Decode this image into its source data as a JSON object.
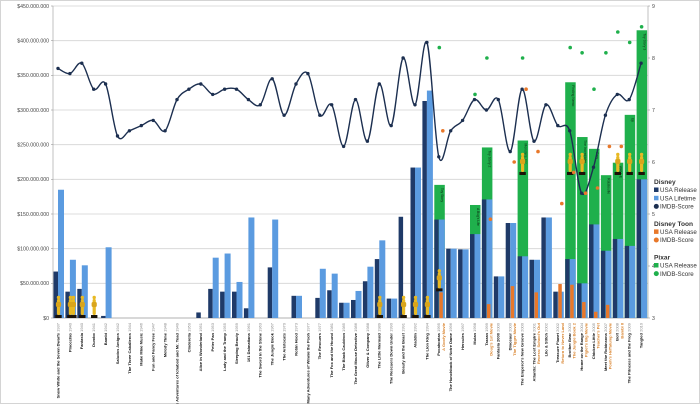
{
  "chart_data": {
    "type": "bar",
    "left_axis": {
      "ylim": [
        0,
        450000000
      ],
      "tick_labels": [
        "$0",
        "$50.000.000",
        "$100.000.000",
        "$150.000.000",
        "$200.000.000",
        "$250.000.000",
        "$300.000.000",
        "$350.000.000",
        "$400.000.000",
        "$450.000.000"
      ],
      "unit": "USD millions in series values"
    },
    "right_axis": {
      "ylim": [
        3,
        9
      ],
      "tick_labels": [
        "3",
        "4",
        "5",
        "6",
        "7",
        "8",
        "9"
      ]
    },
    "grid": true,
    "legend_placement": "right",
    "colors": {
      "disney_release": "#1f3a68",
      "disney_lifetime": "#5b9be0",
      "disney_imdb": "#1c2f50",
      "toon": "#e8782a",
      "pixar": "#1fb04c",
      "oscar": "#e8b923"
    },
    "categories": [
      {
        "title": "Snow White and the Seven Dwarfs",
        "year": "1937",
        "toon": ""
      },
      {
        "title": "Pinocchio",
        "year": "1940",
        "toon": ""
      },
      {
        "title": "Fantasia",
        "year": "1940",
        "toon": ""
      },
      {
        "title": "Dumbo",
        "year": "1941",
        "toon": ""
      },
      {
        "title": "Bambi",
        "year": "1942",
        "toon": ""
      },
      {
        "title": "Saludos Amigos",
        "year": "1942",
        "toon": ""
      },
      {
        "title": "The Three Caballeros",
        "year": "1944",
        "toon": ""
      },
      {
        "title": "Make Mine Music",
        "year": "1946",
        "toon": ""
      },
      {
        "title": "Fun and Fancy Free",
        "year": "1947",
        "toon": ""
      },
      {
        "title": "Melody Time",
        "year": "1948",
        "toon": ""
      },
      {
        "title": "The Adventures of Ichabod and Mr. Toad",
        "year": "1949",
        "toon": ""
      },
      {
        "title": "Cinderella",
        "year": "1950",
        "toon": ""
      },
      {
        "title": "Alice in Wonderland",
        "year": "1951",
        "toon": ""
      },
      {
        "title": "Peter Pan",
        "year": "1953",
        "toon": ""
      },
      {
        "title": "Lady and the Tramp",
        "year": "1955",
        "toon": ""
      },
      {
        "title": "Sleeping Beauty",
        "year": "1959",
        "toon": ""
      },
      {
        "title": "101 Dalmatians",
        "year": "1961",
        "toon": ""
      },
      {
        "title": "The Sword in the Stone",
        "year": "1963",
        "toon": ""
      },
      {
        "title": "The Jungle Book",
        "year": "1967",
        "toon": ""
      },
      {
        "title": "The Aristocats",
        "year": "1970",
        "toon": ""
      },
      {
        "title": "Robin Hood",
        "year": "1973",
        "toon": ""
      },
      {
        "title": "The Many Adventures of Winnie the Pooh",
        "year": "1977",
        "toon": ""
      },
      {
        "title": "The Rescuers",
        "year": "1977",
        "toon": ""
      },
      {
        "title": "The Fox and the Hound",
        "year": "1981",
        "toon": ""
      },
      {
        "title": "The Black Cauldron",
        "year": "1985",
        "toon": ""
      },
      {
        "title": "The Great Mouse Detective",
        "year": "1986",
        "toon": ""
      },
      {
        "title": "Oliver & Company",
        "year": "1988",
        "toon": ""
      },
      {
        "title": "The Little Mermaid",
        "year": "1989",
        "toon": ""
      },
      {
        "title": "The Rescuers Down Under",
        "year": "1990",
        "toon": ""
      },
      {
        "title": "Beauty and the Beast",
        "year": "1991",
        "toon": ""
      },
      {
        "title": "Aladdin",
        "year": "1992",
        "toon": ""
      },
      {
        "title": "The Lion King",
        "year": "1994",
        "toon": ""
      },
      {
        "title": "Pocahontas",
        "year": "1995",
        "toon": "A Goofy Movie"
      },
      {
        "title": "The Hunchback of Notre Dame",
        "year": "1996",
        "toon": ""
      },
      {
        "title": "Hercules",
        "year": "1997",
        "toon": ""
      },
      {
        "title": "Mulan",
        "year": "1998",
        "toon": ""
      },
      {
        "title": "Tarzan",
        "year": "1999",
        "toon": "Doug's 1st Movie"
      },
      {
        "title": "Fantasia 2000",
        "year": "2000",
        "toon": ""
      },
      {
        "title": "Dinosaur",
        "year": "2000",
        "toon": "The Tigger Movie"
      },
      {
        "title": "The Emperor's New Groove",
        "year": "2000",
        "toon": ""
      },
      {
        "title": "Atlantis: The Lost Empire",
        "year": "2001",
        "toon": "Recess: School's Out"
      },
      {
        "title": "Lilo & Stitch",
        "year": "2002",
        "toon": ""
      },
      {
        "title": "Treasure Planet",
        "year": "2002",
        "toon": "Return to Never Land"
      },
      {
        "title": "Brother Bear",
        "year": "2003",
        "toon": "The Jungle Book 2"
      },
      {
        "title": "Home on the Range",
        "year": "2004",
        "toon": "Piglet's Big Movie"
      },
      {
        "title": "Chicken Little",
        "year": "2005",
        "toon": "Teacher's Pet"
      },
      {
        "title": "Meet the Robinsons",
        "year": "2007",
        "toon": "Pooh's Heffalump Movie"
      },
      {
        "title": "Bolt",
        "year": "2008",
        "toon": "Bambi II"
      },
      {
        "title": "The Princess and the Frog",
        "year": "2009",
        "toon": ""
      },
      {
        "title": "Tangled",
        "year": "2010",
        "toon": ""
      }
    ],
    "series": [
      {
        "name": "Disney USA Release",
        "axis": "left",
        "values": [
          67,
          38,
          42,
          null,
          3,
          null,
          null,
          null,
          null,
          null,
          null,
          null,
          8,
          42,
          38,
          38,
          14,
          null,
          73,
          null,
          32,
          null,
          29,
          40,
          22,
          26,
          53,
          85,
          28,
          146,
          217,
          313,
          142,
          100,
          99,
          121,
          171,
          60,
          137,
          89,
          84,
          145,
          38,
          85,
          50,
          135,
          97,
          114,
          104,
          200
        ]
      },
      {
        "name": "Disney USA Lifetime",
        "axis": "left",
        "values": [
          185,
          84,
          76,
          null,
          102,
          null,
          null,
          null,
          null,
          null,
          null,
          null,
          null,
          87,
          93,
          52,
          145,
          null,
          142,
          null,
          32,
          null,
          71,
          64,
          22,
          39,
          74,
          112,
          28,
          null,
          217,
          328,
          142,
          100,
          99,
          121,
          171,
          60,
          137,
          89,
          84,
          145,
          38,
          85,
          50,
          135,
          97,
          114,
          104,
          200
        ]
      },
      {
        "name": "Disney IMDB-Score",
        "axis": "right",
        "values": [
          7.8,
          7.7,
          7.9,
          7.4,
          7.5,
          6.5,
          6.6,
          6.7,
          6.8,
          6.6,
          7.2,
          7.4,
          7.5,
          7.3,
          7.4,
          7.4,
          7.2,
          7.1,
          7.6,
          6.9,
          7.5,
          7.7,
          6.9,
          7.1,
          6.3,
          7.2,
          6.4,
          7.5,
          6.7,
          8.0,
          7.1,
          8.3,
          6.1,
          6.6,
          6.8,
          7.2,
          7.0,
          7.2,
          6.2,
          7.4,
          6.4,
          7.1,
          6.7,
          6.6,
          5.4,
          5.9,
          6.9,
          7.3,
          7.2,
          7.9
        ]
      },
      {
        "name": "Disney Toon USA Release",
        "axis": "left",
        "values": [
          null,
          null,
          null,
          null,
          null,
          null,
          null,
          null,
          null,
          null,
          null,
          null,
          null,
          null,
          null,
          null,
          null,
          null,
          null,
          null,
          null,
          null,
          null,
          null,
          null,
          null,
          null,
          null,
          null,
          null,
          null,
          null,
          37,
          null,
          null,
          null,
          20,
          null,
          46,
          null,
          37,
          null,
          49,
          48,
          23,
          9,
          19,
          null,
          null,
          null
        ]
      },
      {
        "name": "Disney Toon IMDB-Score",
        "axis": "right",
        "values": [
          null,
          null,
          null,
          null,
          null,
          null,
          null,
          null,
          null,
          null,
          null,
          null,
          null,
          null,
          null,
          null,
          null,
          null,
          null,
          null,
          null,
          null,
          null,
          null,
          null,
          null,
          null,
          null,
          null,
          null,
          null,
          null,
          6.6,
          null,
          null,
          null,
          4.9,
          null,
          6.0,
          7.4,
          6.2,
          null,
          5.2,
          5.8,
          5.4,
          5.5,
          6.3,
          6.3,
          null,
          null
        ]
      },
      {
        "name": "Pixar USA Release",
        "axis": "left",
        "values": [
          null,
          null,
          null,
          null,
          null,
          null,
          null,
          null,
          null,
          null,
          null,
          null,
          null,
          null,
          null,
          null,
          null,
          null,
          null,
          null,
          null,
          null,
          null,
          null,
          null,
          null,
          null,
          null,
          null,
          null,
          null,
          null,
          192,
          null,
          null,
          163,
          246,
          null,
          null,
          256,
          null,
          null,
          null,
          340,
          261,
          244,
          206,
          224,
          293,
          415
        ]
      },
      {
        "name": "Pixar IMDB-Score",
        "axis": "right",
        "values": [
          null,
          null,
          null,
          null,
          null,
          null,
          null,
          null,
          null,
          null,
          null,
          null,
          null,
          null,
          null,
          null,
          null,
          null,
          null,
          null,
          null,
          null,
          null,
          null,
          null,
          null,
          null,
          null,
          null,
          null,
          null,
          null,
          8.2,
          null,
          null,
          7.3,
          8.0,
          null,
          null,
          8.0,
          null,
          null,
          null,
          8.2,
          8.1,
          7.4,
          8.1,
          8.5,
          8.3,
          8.6
        ]
      }
    ],
    "pixar_titles": [
      null,
      null,
      null,
      null,
      null,
      null,
      null,
      null,
      null,
      null,
      null,
      null,
      null,
      null,
      null,
      null,
      null,
      null,
      null,
      null,
      null,
      null,
      null,
      null,
      null,
      null,
      null,
      null,
      null,
      null,
      null,
      null,
      "Toy Story",
      null,
      null,
      "A Bug's Life",
      "Toy Story 2",
      null,
      null,
      "Monsters, Inc.",
      null,
      null,
      null,
      "Finding Nemo",
      "The Incredibles",
      "Cars",
      "Ratatouille",
      "WALL-E",
      "Up",
      "Toy Story 3"
    ],
    "oscar_icons": {
      "disney": [
        0,
        1,
        1,
        2,
        3,
        27,
        29,
        30,
        31,
        32
      ],
      "pixar": [
        39,
        43,
        44,
        47,
        48,
        49
      ]
    },
    "legend": [
      {
        "group": "Disney",
        "items": [
          {
            "label": "USA Release",
            "marker": "square",
            "color": "#1f3a68"
          },
          {
            "label": "USA Lifetime",
            "marker": "square",
            "color": "#5b9be0"
          },
          {
            "label": "IMDB-Score",
            "marker": "circle",
            "color": "#1c2f50"
          }
        ]
      },
      {
        "group": "Disney Toon",
        "items": [
          {
            "label": "USA Release",
            "marker": "square",
            "color": "#e8782a"
          },
          {
            "label": "IMDB-Score",
            "marker": "circle",
            "color": "#e8782a"
          }
        ]
      },
      {
        "group": "Pixar",
        "items": [
          {
            "label": "USA Release",
            "marker": "square",
            "color": "#1fb04c"
          },
          {
            "label": "IMDB-Score",
            "marker": "circle",
            "color": "#1fb04c"
          }
        ]
      }
    ]
  }
}
